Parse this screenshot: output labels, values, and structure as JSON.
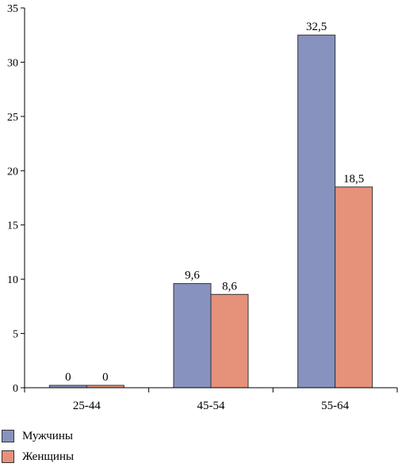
{
  "chart_data": {
    "type": "bar",
    "categories": [
      "25-44",
      "45-54",
      "55-64"
    ],
    "series": [
      {
        "name": "Мужчины",
        "values": [
          0,
          9.6,
          32.5
        ],
        "labels": [
          "0",
          "9,6",
          "32,5"
        ],
        "color": "#8792bf"
      },
      {
        "name": "Женщины",
        "values": [
          0,
          8.6,
          18.5
        ],
        "labels": [
          "0",
          "8,6",
          "18,5"
        ],
        "color": "#e6917a"
      }
    ],
    "ylim": [
      0,
      35
    ],
    "yticks": [
      0,
      5,
      10,
      15,
      20,
      25,
      30,
      35
    ],
    "grid": false,
    "legend_position": "bottom-left",
    "title": "",
    "xlabel": "",
    "ylabel": ""
  }
}
